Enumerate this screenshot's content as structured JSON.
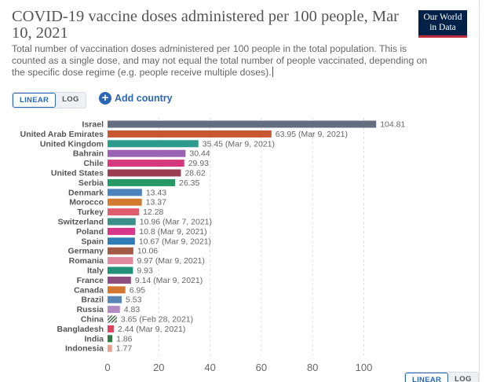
{
  "header": {
    "title": "COVID-19 vaccine doses administered per 100 people, Mar 10, 2021",
    "subtitle": "Total number of vaccination doses administered per 100 people in the total population. This is counted as a single dose, and may not equal the total number of people vaccinated, depending on the specific dose regime (e.g. people receive multiple doses)."
  },
  "logo": {
    "line1": "Our World",
    "line2": "in Data"
  },
  "controls": {
    "linear_label": "LINEAR",
    "log_label": "LOG",
    "add_country_label": "Add country"
  },
  "colors": {
    "title": "#555555",
    "accent": "#2a68b5",
    "logo_bg": "#002147",
    "logo_bar": "#c22d3b"
  },
  "chart_data": {
    "type": "bar",
    "orientation": "horizontal",
    "xlim": [
      0,
      105
    ],
    "x_ticks": [
      0,
      20,
      40,
      60,
      80,
      100
    ],
    "grid": true,
    "bars": [
      {
        "country": "Israel",
        "value": 104.81,
        "label": "104.81",
        "color": "#646d80"
      },
      {
        "country": "United Arab Emirates",
        "value": 63.95,
        "label": "63.95 (Mar 9, 2021)",
        "color": "#c65731"
      },
      {
        "country": "United Kingdom",
        "value": 35.45,
        "label": "35.45 (Mar 9, 2021)",
        "color": "#2c9a8d"
      },
      {
        "country": "Bahrain",
        "value": 30.44,
        "label": "30.44",
        "color": "#9964b4"
      },
      {
        "country": "Chile",
        "value": 29.93,
        "label": "29.93",
        "color": "#d6387c"
      },
      {
        "country": "United States",
        "value": 28.62,
        "label": "28.62",
        "color": "#9b3d52"
      },
      {
        "country": "Serbia",
        "value": 26.35,
        "label": "26.35",
        "color": "#259a64"
      },
      {
        "country": "Denmark",
        "value": 13.43,
        "label": "13.43",
        "color": "#4b83ba"
      },
      {
        "country": "Morocco",
        "value": 13.37,
        "label": "13.37",
        "color": "#d37a2e"
      },
      {
        "country": "Turkey",
        "value": 12.28,
        "label": "12.28",
        "color": "#df5c6b"
      },
      {
        "country": "Switzerland",
        "value": 10.96,
        "label": "10.96 (Mar 7, 2021)",
        "color": "#3d8f8a"
      },
      {
        "country": "Poland",
        "value": 10.8,
        "label": "10.8 (Mar 9, 2021)",
        "color": "#d6368a"
      },
      {
        "country": "Spain",
        "value": 10.67,
        "label": "10.67 (Mar 9, 2021)",
        "color": "#2f7cb5"
      },
      {
        "country": "Germany",
        "value": 10.06,
        "label": "10.06",
        "color": "#a35a44"
      },
      {
        "country": "Romania",
        "value": 9.97,
        "label": "9.97 (Mar 9, 2021)",
        "color": "#e08aa0"
      },
      {
        "country": "Italy",
        "value": 9.93,
        "label": "9.93",
        "color": "#219178"
      },
      {
        "country": "France",
        "value": 9.14,
        "label": "9.14 (Mar 9, 2021)",
        "color": "#8d4e7d"
      },
      {
        "country": "Canada",
        "value": 6.95,
        "label": "6.95",
        "color": "#d4782f"
      },
      {
        "country": "Brazil",
        "value": 5.53,
        "label": "5.53",
        "color": "#5a86b6"
      },
      {
        "country": "Russia",
        "value": 4.83,
        "label": "4.83",
        "color": "#b48ac4"
      },
      {
        "country": "China",
        "value": 3.65,
        "label": "3.65 (Feb 28, 2021)",
        "color": "#4f6b55",
        "hatched": true
      },
      {
        "country": "Bangladesh",
        "value": 2.44,
        "label": "2.44 (Mar 9, 2021)",
        "color": "#e0435c"
      },
      {
        "country": "India",
        "value": 1.86,
        "label": "1.86",
        "color": "#2f7d43"
      },
      {
        "country": "Indonesia",
        "value": 1.77,
        "label": "1.77",
        "color": "#e3a38c"
      }
    ]
  }
}
